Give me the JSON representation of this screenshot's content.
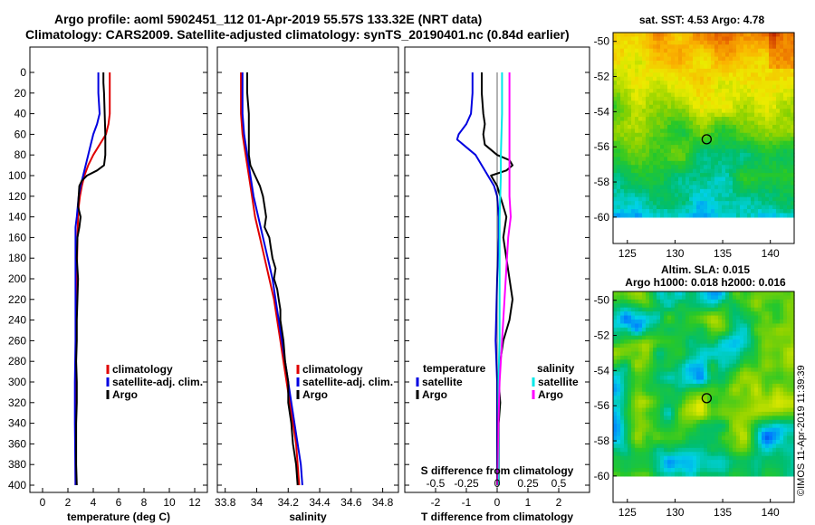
{
  "header": {
    "title_line1": "Argo profile: aoml 5902451_112 01-Apr-2019 55.57S 133.32E (NRT data)",
    "title_line2": "Climatology: CARS2009. Satellite-adjusted climatology: synTS_20190401.nc (0.84d earlier)"
  },
  "copyright": "©IMOS 11-Apr-2019 11:39:39",
  "colors": {
    "climatology": "#e00000",
    "satellite": "#0000e0",
    "argo": "#000000",
    "satellite_salinity": "#00e8e8",
    "climatology_salinity": "#ff00ff"
  },
  "chart_data": [
    {
      "type": "line",
      "id": "temperature",
      "xlabel": "temperature (deg C)",
      "ylabel": "",
      "xlim": [
        -1,
        13
      ],
      "ylim": [
        400,
        0
      ],
      "x_ticks": [
        0,
        2,
        4,
        6,
        8,
        10,
        12
      ],
      "x_tick_labels": [
        "0",
        "2",
        "4",
        "6",
        "8",
        "10",
        "12"
      ],
      "y_ticks": [
        0,
        20,
        40,
        60,
        80,
        100,
        120,
        140,
        160,
        180,
        200,
        220,
        240,
        260,
        280,
        300,
        320,
        340,
        360,
        380,
        400
      ],
      "y_tick_labels": [
        "0",
        "20",
        "40",
        "60",
        "80",
        "100",
        "120",
        "140",
        "160",
        "180",
        "200",
        "220",
        "240",
        "260",
        "280",
        "300",
        "320",
        "340",
        "360",
        "380",
        "400"
      ],
      "legend": [
        {
          "label": "climatology",
          "color": "#e00000"
        },
        {
          "label": "satellite-adj. clim.",
          "color": "#0000e0"
        },
        {
          "label": "Argo",
          "color": "#000000"
        }
      ],
      "legend_position": "bottom-right",
      "series": [
        {
          "name": "climatology",
          "color": "#e00000",
          "depth": [
            0,
            10,
            20,
            40,
            50,
            60,
            70,
            80,
            90,
            100,
            110,
            120,
            130,
            140,
            160,
            200,
            260,
            300,
            340,
            400
          ],
          "values": [
            5.3,
            5.3,
            5.3,
            5.3,
            5.2,
            5.0,
            4.5,
            4.0,
            3.6,
            3.3,
            3.1,
            2.95,
            2.85,
            2.8,
            2.75,
            2.7,
            2.65,
            2.6,
            2.6,
            2.6
          ]
        },
        {
          "name": "satellite-adj. clim.",
          "color": "#0000e0",
          "depth": [
            0,
            20,
            40,
            50,
            60,
            70,
            80,
            90,
            100,
            110,
            120,
            140,
            150,
            170,
            200,
            260,
            300,
            340,
            400
          ],
          "values": [
            4.4,
            4.4,
            4.5,
            4.3,
            4.0,
            3.8,
            3.6,
            3.4,
            3.2,
            3.0,
            2.85,
            2.7,
            2.6,
            2.6,
            2.6,
            2.6,
            2.55,
            2.55,
            2.6
          ]
        },
        {
          "name": "Argo",
          "color": "#000000",
          "depth": [
            0,
            10,
            20,
            40,
            60,
            80,
            90,
            95,
            100,
            105,
            110,
            120,
            130,
            140,
            150,
            160,
            180,
            200,
            220,
            240,
            260,
            280,
            300,
            320,
            340,
            360,
            380,
            400
          ],
          "values": [
            4.8,
            4.8,
            4.85,
            4.9,
            4.95,
            4.95,
            4.85,
            4.3,
            3.5,
            3.1,
            2.9,
            2.85,
            2.8,
            3.0,
            2.9,
            2.75,
            2.7,
            2.8,
            2.75,
            2.7,
            2.7,
            2.65,
            2.7,
            2.7,
            2.65,
            2.65,
            2.65,
            2.7
          ]
        }
      ]
    },
    {
      "type": "line",
      "id": "salinity",
      "xlabel": "salinity",
      "ylabel": "",
      "xlim": [
        33.75,
        34.9
      ],
      "ylim": [
        400,
        0
      ],
      "x_ticks": [
        33.8,
        34,
        34.2,
        34.4,
        34.6,
        34.8
      ],
      "x_tick_labels": [
        "33.8",
        "34",
        "34.2",
        "34.4",
        "34.6",
        "34.8"
      ],
      "legend": [
        {
          "label": "climatology",
          "color": "#e00000"
        },
        {
          "label": "satellite-adj. clim.",
          "color": "#0000e0"
        },
        {
          "label": "Argo",
          "color": "#000000"
        }
      ],
      "legend_position": "bottom-right",
      "series": [
        {
          "name": "climatology",
          "color": "#e00000",
          "depth": [
            0,
            20,
            40,
            60,
            80,
            100,
            120,
            140,
            160,
            180,
            200,
            220,
            240,
            260,
            280,
            300,
            320,
            340,
            360,
            380,
            400
          ],
          "values": [
            33.9,
            33.9,
            33.9,
            33.91,
            33.93,
            33.95,
            33.97,
            33.99,
            34.02,
            34.05,
            34.08,
            34.11,
            34.13,
            34.15,
            34.17,
            34.19,
            34.21,
            34.23,
            34.25,
            34.26,
            34.27
          ]
        },
        {
          "name": "satellite-adj. clim.",
          "color": "#0000e0",
          "depth": [
            0,
            20,
            40,
            60,
            80,
            100,
            120,
            140,
            160,
            180,
            200,
            220,
            240,
            260,
            280,
            300,
            320,
            340,
            360,
            380,
            400
          ],
          "values": [
            33.91,
            33.91,
            33.91,
            33.92,
            33.94,
            33.96,
            33.98,
            34.01,
            34.04,
            34.07,
            34.1,
            34.12,
            34.14,
            34.16,
            34.18,
            34.2,
            34.22,
            34.24,
            34.26,
            34.28,
            34.29
          ]
        },
        {
          "name": "Argo",
          "color": "#000000",
          "depth": [
            0,
            20,
            40,
            60,
            80,
            90,
            100,
            110,
            120,
            130,
            140,
            150,
            160,
            170,
            180,
            190,
            200,
            210,
            220,
            230,
            240,
            260,
            280,
            300,
            320,
            340,
            360,
            380,
            400
          ],
          "values": [
            33.94,
            33.94,
            33.95,
            33.95,
            33.95,
            33.96,
            33.99,
            34.02,
            34.04,
            34.05,
            34.06,
            34.05,
            34.08,
            34.09,
            34.1,
            34.12,
            34.11,
            34.13,
            34.14,
            34.15,
            34.15,
            34.17,
            34.18,
            34.2,
            34.2,
            34.22,
            34.23,
            34.25,
            34.26
          ]
        }
      ]
    },
    {
      "type": "line",
      "id": "difference",
      "xlabel": "T difference from climatology",
      "xlabel_top": "S difference from climatology",
      "ylabel": "",
      "xlim": [
        -3,
        3
      ],
      "ylim": [
        400,
        0
      ],
      "x_ticks": [
        -2,
        -1,
        0,
        1,
        2
      ],
      "x_tick_labels": [
        "-2",
        "-1",
        "0",
        "1",
        "2"
      ],
      "s_ticks": [
        -0.5,
        -0.25,
        0,
        0.25,
        0.5
      ],
      "s_tick_labels": [
        "-0.5",
        "-0.25",
        "0",
        "0.25",
        "0.5"
      ],
      "legend_temperature_title": "temperature",
      "legend_salinity_title": "salinity",
      "legend": [
        {
          "label": "satellite",
          "group": "temperature",
          "color": "#0000e0"
        },
        {
          "label": "Argo",
          "group": "temperature",
          "color": "#000000"
        },
        {
          "label": "satellite",
          "group": "salinity",
          "color": "#00e8e8"
        },
        {
          "label": "Argo",
          "group": "salinity",
          "color": "#ff00ff"
        }
      ],
      "series": [
        {
          "name": "temperature satellite",
          "color": "#0000e0",
          "depth": [
            0,
            20,
            40,
            50,
            60,
            65,
            70,
            80,
            90,
            100,
            110,
            120,
            140,
            160,
            200,
            260,
            300,
            340,
            400
          ],
          "values": [
            -0.8,
            -0.8,
            -0.85,
            -1.0,
            -1.25,
            -1.3,
            -1.1,
            -0.7,
            -0.5,
            -0.3,
            -0.1,
            0.0,
            0.05,
            0.05,
            0.0,
            -0.05,
            0.0,
            0.0,
            0.0
          ]
        },
        {
          "name": "temperature Argo",
          "color": "#000000",
          "depth": [
            0,
            20,
            40,
            50,
            60,
            70,
            80,
            85,
            90,
            95,
            100,
            105,
            110,
            120,
            140,
            160,
            180,
            200,
            220,
            240,
            260,
            280,
            300,
            320,
            340,
            360,
            380,
            400
          ],
          "values": [
            -0.5,
            -0.5,
            -0.45,
            -0.4,
            -0.45,
            -0.4,
            0.0,
            0.4,
            0.5,
            0.3,
            -0.2,
            -0.1,
            0.0,
            0.1,
            0.3,
            0.2,
            0.3,
            0.4,
            0.5,
            0.4,
            0.2,
            0.1,
            0.05,
            0.1,
            0.05,
            0.05,
            0.05,
            0.05
          ]
        },
        {
          "name": "salinity satellite",
          "color": "#00e8e8",
          "depth": [
            0,
            40,
            80,
            100,
            140,
            200,
            260,
            300,
            340,
            400
          ],
          "values": [
            0.04,
            0.04,
            0.03,
            0.03,
            0.02,
            0.02,
            0.02,
            0.01,
            0.01,
            0.01
          ]
        },
        {
          "name": "salinity Argo",
          "color": "#ff00ff",
          "depth": [
            0,
            20,
            40,
            60,
            80,
            100,
            120,
            140,
            160,
            200,
            260,
            300,
            340,
            400
          ],
          "values": [
            0.1,
            0.1,
            0.1,
            0.1,
            0.1,
            0.1,
            0.1,
            0.11,
            0.09,
            0.07,
            0.04,
            0.02,
            0.01,
            0.0
          ]
        }
      ]
    },
    {
      "type": "heatmap",
      "id": "sst_map",
      "title": "sat. SST: 4.53 Argo: 4.78",
      "xlim": [
        123.5,
        142.5
      ],
      "ylim": [
        -61.5,
        -49.5
      ],
      "x_ticks": [
        125,
        130,
        135,
        140
      ],
      "x_tick_labels": [
        "125",
        "130",
        "135",
        "140"
      ],
      "y_ticks": [
        -50,
        -52,
        -54,
        -56,
        -58,
        -60
      ],
      "y_tick_labels": [
        "-50",
        "-52",
        "-54",
        "-56",
        "-58",
        "-60"
      ],
      "data_extent": {
        "lon": [
          123.5,
          142.5
        ],
        "lat": [
          -60,
          -49.5
        ]
      },
      "marker": {
        "lon": 133.32,
        "lat": -55.57
      }
    },
    {
      "type": "heatmap",
      "id": "sla_map",
      "title": "Altim. SLA: 0.015",
      "subtitle": "Argo h1000: 0.018 h2000: 0.016",
      "xlim": [
        123.5,
        142.5
      ],
      "ylim": [
        -61.5,
        -49.5
      ],
      "x_ticks": [
        125,
        130,
        135,
        140
      ],
      "x_tick_labels": [
        "125",
        "130",
        "135",
        "140"
      ],
      "y_ticks": [
        -50,
        -52,
        -54,
        -56,
        -58,
        -60
      ],
      "y_tick_labels": [
        "-50",
        "-52",
        "-54",
        "-56",
        "-58",
        "-60"
      ],
      "data_extent": {
        "lon": [
          123.5,
          142.5
        ],
        "lat": [
          -60,
          -49.5
        ]
      },
      "marker": {
        "lon": 133.32,
        "lat": -55.57
      }
    }
  ]
}
